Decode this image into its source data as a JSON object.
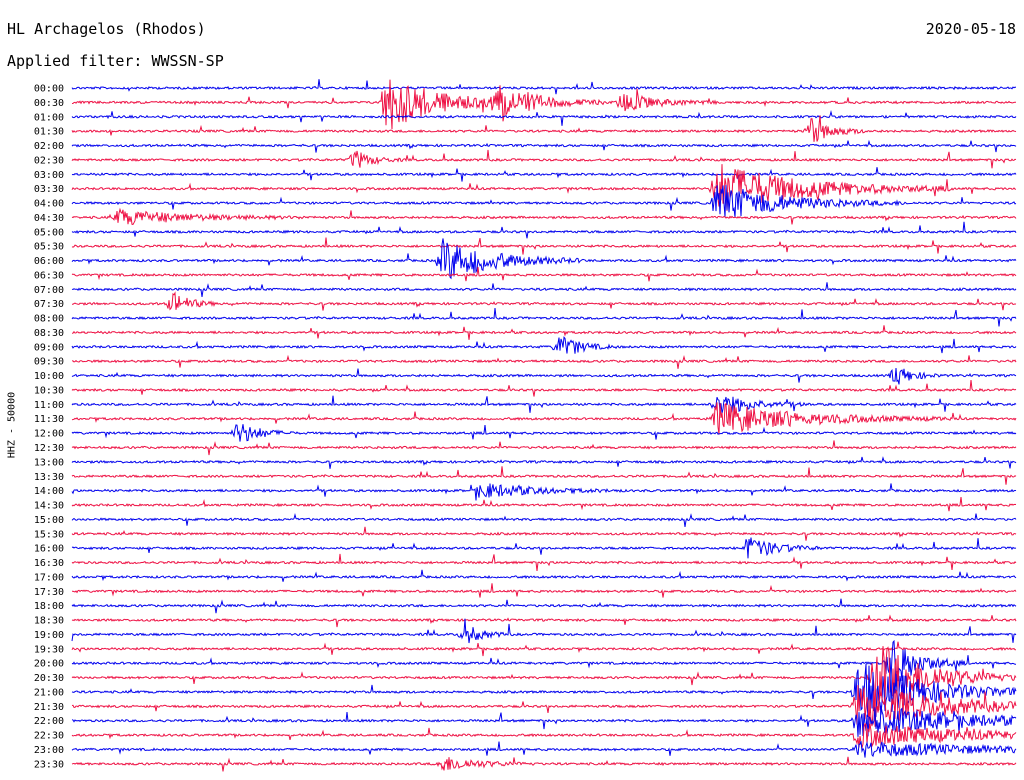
{
  "header": {
    "station": "HL Archagelos (Rhodos)",
    "filter": "Applied filter: WWSSN-SP",
    "date": "2020-05-18"
  },
  "chart_data": {
    "type": "line",
    "title": "HL Archagelos (Rhodos)",
    "subtitle": "Applied filter: WWSSN-SP",
    "date": "2020-05-18",
    "ylabel": "HHZ - 50000",
    "y_ticks": [
      "00:00",
      "00:30",
      "01:00",
      "01:30",
      "02:00",
      "02:30",
      "03:00",
      "03:30",
      "04:00",
      "04:30",
      "05:00",
      "05:30",
      "06:00",
      "06:30",
      "07:00",
      "07:30",
      "08:00",
      "08:30",
      "09:00",
      "09:30",
      "10:00",
      "10:30",
      "11:00",
      "11:30",
      "12:00",
      "12:30",
      "13:00",
      "13:30",
      "14:00",
      "14:30",
      "15:00",
      "15:30",
      "16:00",
      "16:30",
      "17:00",
      "17:30",
      "18:00",
      "18:30",
      "19:00",
      "19:30",
      "20:00",
      "20:30",
      "21:00",
      "21:30",
      "22:00",
      "22:30",
      "23:00",
      "23:30"
    ],
    "trace_colors": [
      "#0000ee",
      "#ee1144"
    ],
    "row_minutes": 30,
    "events": [
      {
        "row": 1,
        "minute": 10.0,
        "amp": 30,
        "dur": 1.5
      },
      {
        "row": 1,
        "minute": 13.5,
        "amp": 18,
        "dur": 1.2
      },
      {
        "row": 1,
        "minute": 17.5,
        "amp": 10,
        "dur": 1.0
      },
      {
        "row": 3,
        "minute": 23.5,
        "amp": 14,
        "dur": 0.6
      },
      {
        "row": 5,
        "minute": 9.0,
        "amp": 10,
        "dur": 0.5
      },
      {
        "row": 7,
        "minute": 20.5,
        "amp": 26,
        "dur": 2.5
      },
      {
        "row": 8,
        "minute": 20.5,
        "amp": 20,
        "dur": 2.0
      },
      {
        "row": 9,
        "minute": 1.5,
        "amp": 8,
        "dur": 2.0
      },
      {
        "row": 12,
        "minute": 11.8,
        "amp": 22,
        "dur": 1.5
      },
      {
        "row": 15,
        "minute": 3.2,
        "amp": 12,
        "dur": 0.5
      },
      {
        "row": 18,
        "minute": 15.5,
        "amp": 12,
        "dur": 0.6
      },
      {
        "row": 20,
        "minute": 26.2,
        "amp": 10,
        "dur": 0.5
      },
      {
        "row": 22,
        "minute": 20.5,
        "amp": 12,
        "dur": 1.0
      },
      {
        "row": 23,
        "minute": 20.5,
        "amp": 16,
        "dur": 2.5
      },
      {
        "row": 24,
        "minute": 5.3,
        "amp": 12,
        "dur": 0.6
      },
      {
        "row": 28,
        "minute": 13.0,
        "amp": 8,
        "dur": 1.5
      },
      {
        "row": 32,
        "minute": 21.5,
        "amp": 12,
        "dur": 0.8
      },
      {
        "row": 38,
        "minute": 12.5,
        "amp": 10,
        "dur": 0.5
      },
      {
        "row": 40,
        "minute": 26.0,
        "amp": 28,
        "dur": 0.8
      },
      {
        "row": 41,
        "minute": 25.5,
        "amp": 40,
        "dur": 1.5
      },
      {
        "row": 42,
        "minute": 25.0,
        "amp": 32,
        "dur": 2.0
      },
      {
        "row": 43,
        "minute": 25.0,
        "amp": 24,
        "dur": 2.5
      },
      {
        "row": 44,
        "minute": 25.0,
        "amp": 18,
        "dur": 3.0
      },
      {
        "row": 45,
        "minute": 25.0,
        "amp": 12,
        "dur": 3.5
      },
      {
        "row": 46,
        "minute": 25.0,
        "amp": 8,
        "dur": 4.0
      },
      {
        "row": 47,
        "minute": 11.8,
        "amp": 8,
        "dur": 1.0
      }
    ]
  }
}
